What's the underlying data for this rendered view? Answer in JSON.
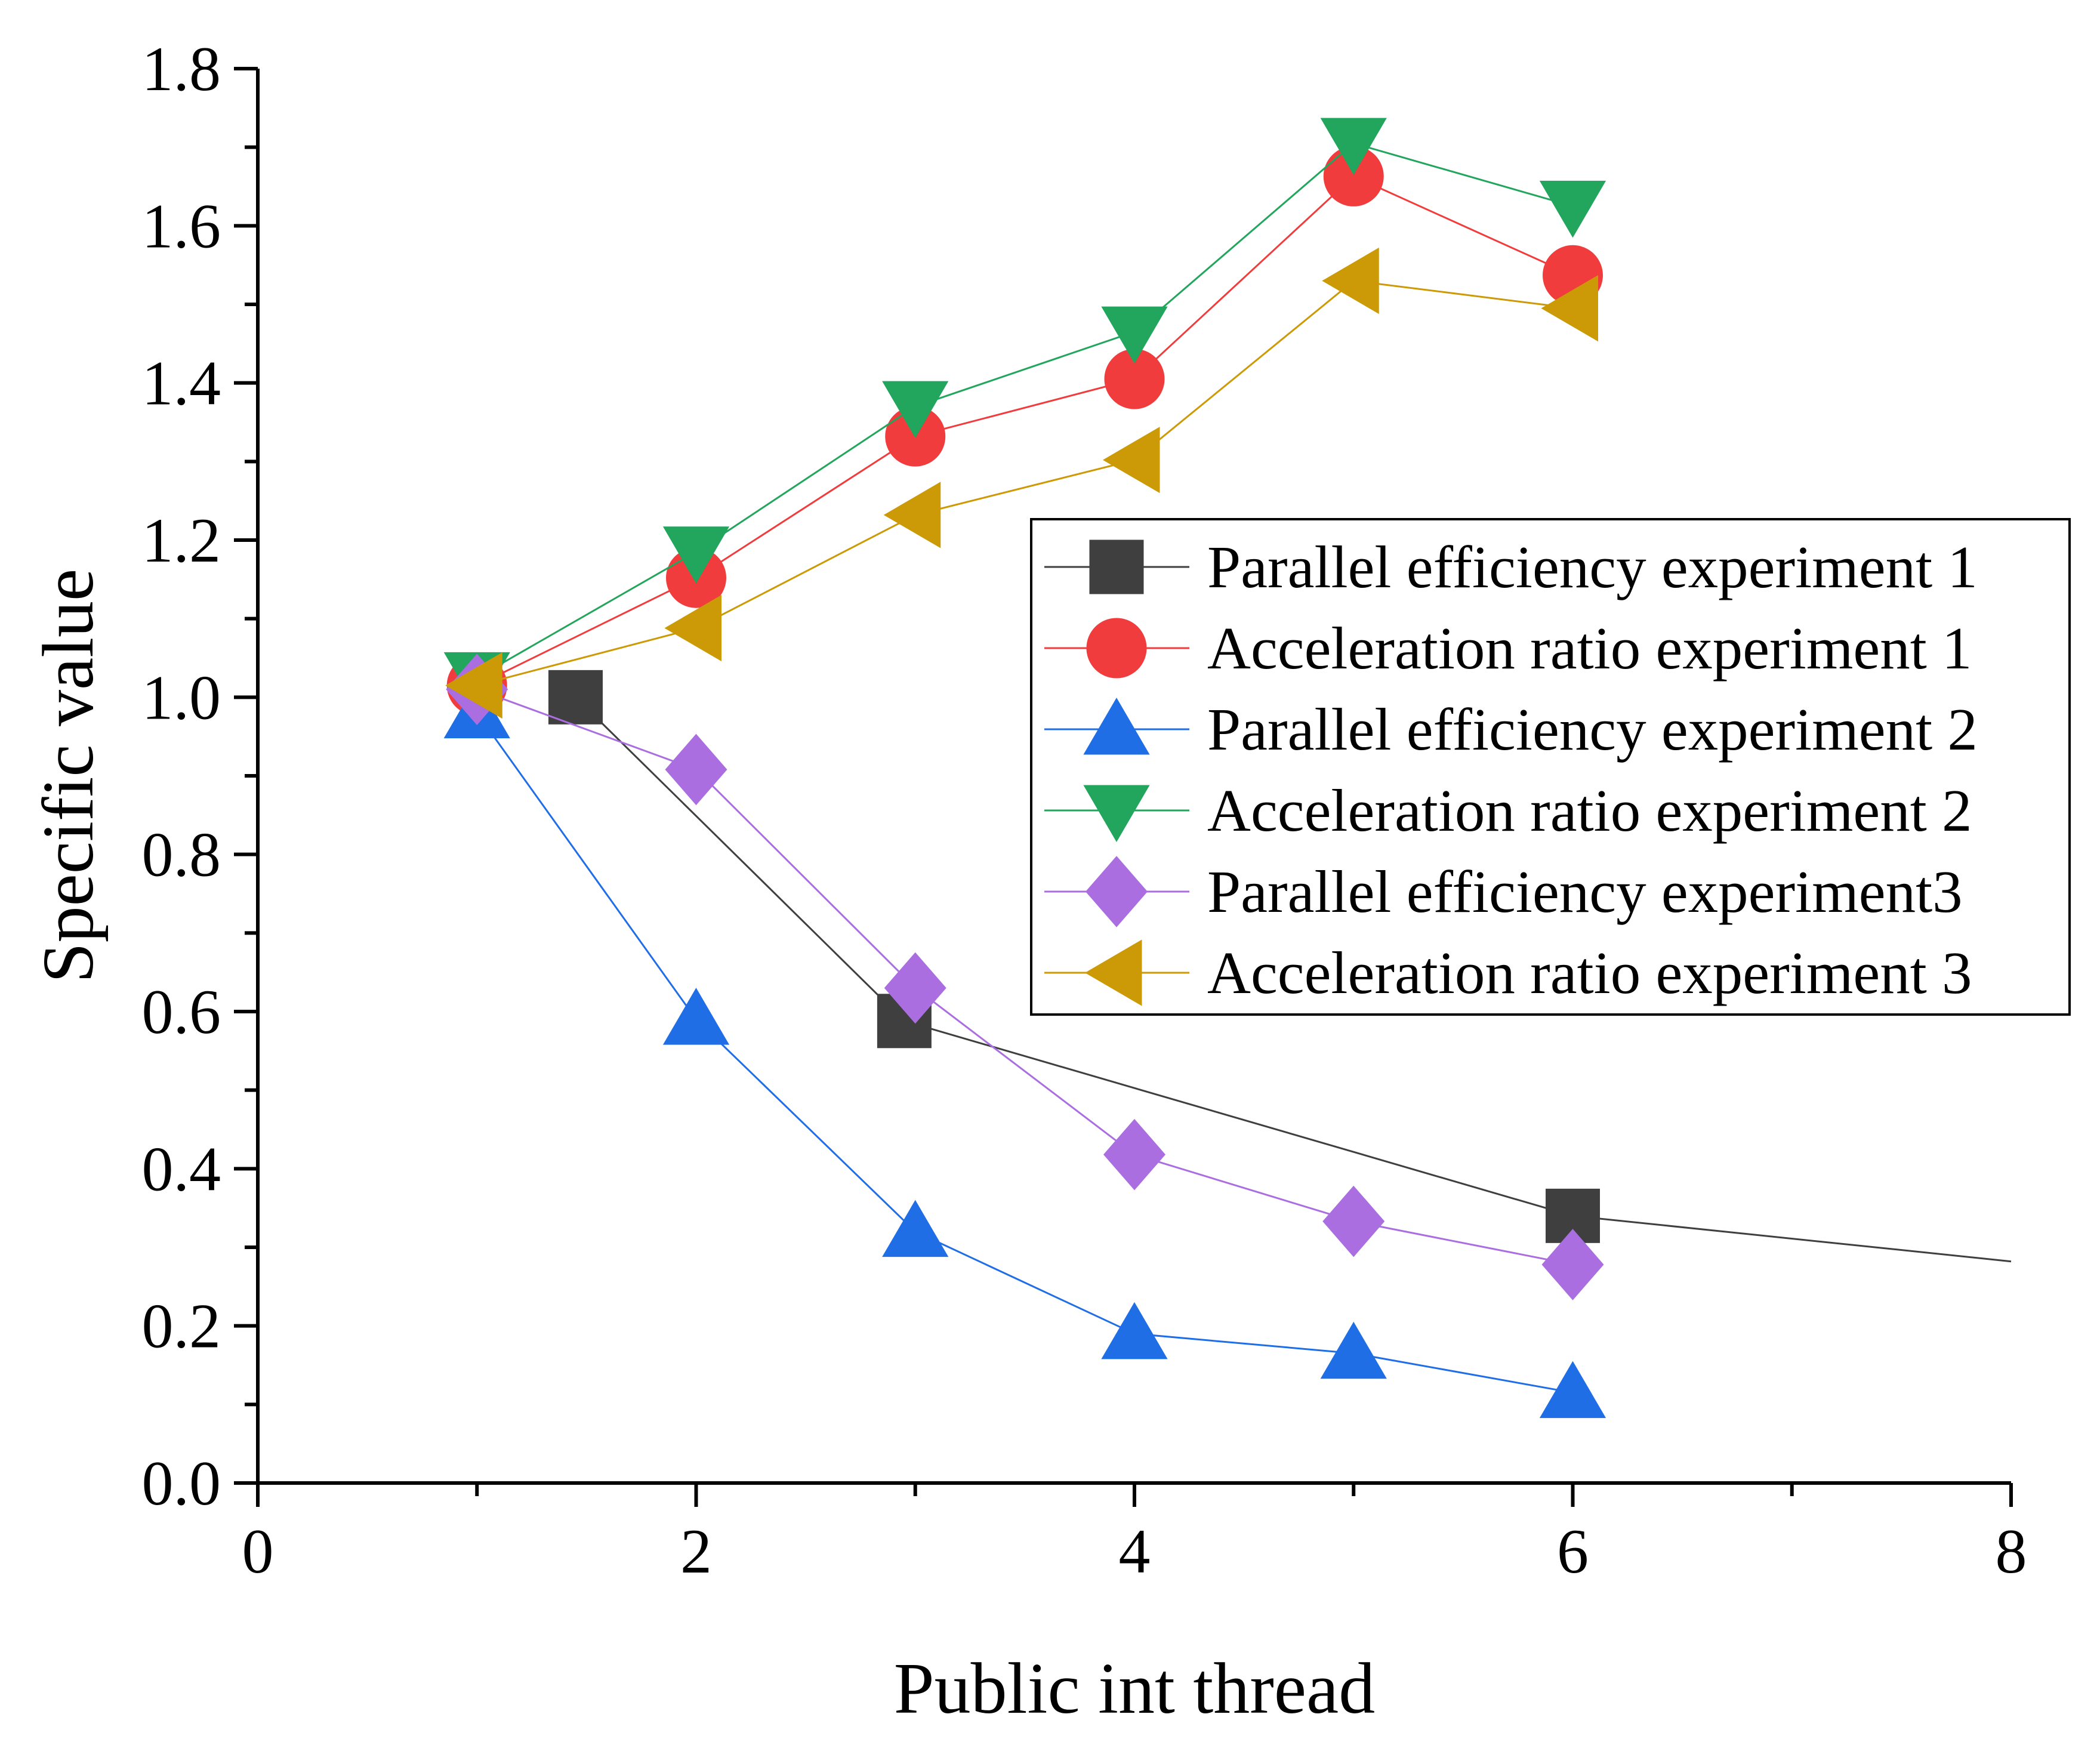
{
  "chart_data": {
    "type": "line",
    "title": "",
    "xlabel": "Public int thread",
    "ylabel": "Specific value",
    "xlim": [
      0,
      8
    ],
    "ylim": [
      0.0,
      1.8
    ],
    "xticks": [
      0,
      2,
      4,
      6,
      8
    ],
    "xtick_labels": [
      "0",
      "2",
      "4",
      "6",
      "8"
    ],
    "yticks": [
      0.0,
      0.2,
      0.4,
      0.6,
      0.8,
      1.0,
      1.2,
      1.4,
      1.6,
      1.8
    ],
    "ytick_labels": [
      "0.0",
      "0.2",
      "0.4",
      "0.6",
      "0.8",
      "1.0",
      "1.2",
      "1.4",
      "1.6",
      "1.8"
    ],
    "grid": false,
    "legend_position": "center-right",
    "series": [
      {
        "name": "Parallel efficiency experiment 1",
        "marker": "square",
        "color": "#3f3f3f",
        "x": [
          1.45,
          2.95,
          6.0,
          8.0
        ],
        "y": [
          1.0,
          0.588,
          0.34,
          0.282
        ]
      },
      {
        "name": "Acceleration ratio experiment 1",
        "marker": "circle",
        "color": "#f03c3c",
        "x": [
          1,
          2,
          3,
          4,
          5,
          6
        ],
        "y": [
          1.015,
          1.152,
          1.332,
          1.405,
          1.663,
          1.537
        ]
      },
      {
        "name": "Parallel efficiency experiment 2",
        "marker": "triangle-up",
        "color": "#1f6ee6",
        "x": [
          1,
          2,
          3,
          4,
          5,
          6
        ],
        "y": [
          0.98,
          0.59,
          0.32,
          0.19,
          0.165,
          0.115
        ]
      },
      {
        "name": "Acceleration ratio experiment 2",
        "marker": "triangle-down",
        "color": "#22a55c",
        "x": [
          1,
          2,
          3,
          4,
          5,
          6
        ],
        "y": [
          1.025,
          1.185,
          1.37,
          1.465,
          1.705,
          1.625
        ]
      },
      {
        "name": "Parallel efficiency experiment3",
        "marker": "diamond",
        "color": "#aa6ee0",
        "x": [
          1,
          2,
          3,
          4,
          5,
          6
        ],
        "y": [
          1.01,
          0.908,
          0.63,
          0.418,
          0.333,
          0.278
        ]
      },
      {
        "name": "Acceleration ratio experiment 3",
        "marker": "triangle-left",
        "color": "#cc9a06",
        "x": [
          1,
          2,
          3,
          4,
          5,
          6
        ],
        "y": [
          1.015,
          1.088,
          1.232,
          1.302,
          1.53,
          1.495
        ]
      }
    ]
  }
}
